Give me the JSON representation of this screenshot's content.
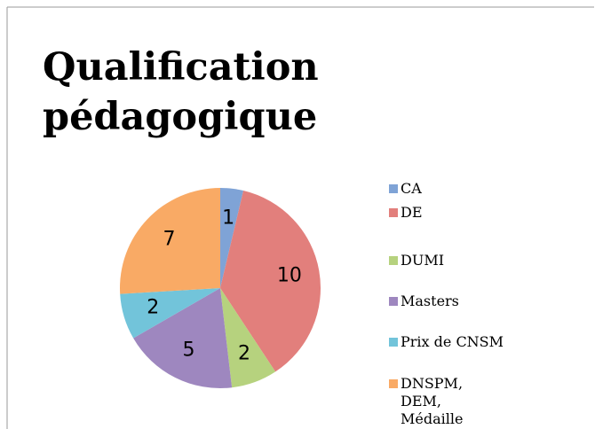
{
  "chart_data": {
    "type": "pie",
    "title": "Qualification pédagogique",
    "categories": [
      "CA",
      "DE",
      "DUMI",
      "Masters",
      "Prix de CNSM",
      "DNSPM, DEM, Médaille"
    ],
    "values": [
      1,
      10,
      2,
      5,
      2,
      7
    ],
    "colors": [
      "#7fa3d6",
      "#e27f7c",
      "#b6d27e",
      "#9e87bf",
      "#72c4da",
      "#f9aa65"
    ],
    "legend": "right"
  }
}
